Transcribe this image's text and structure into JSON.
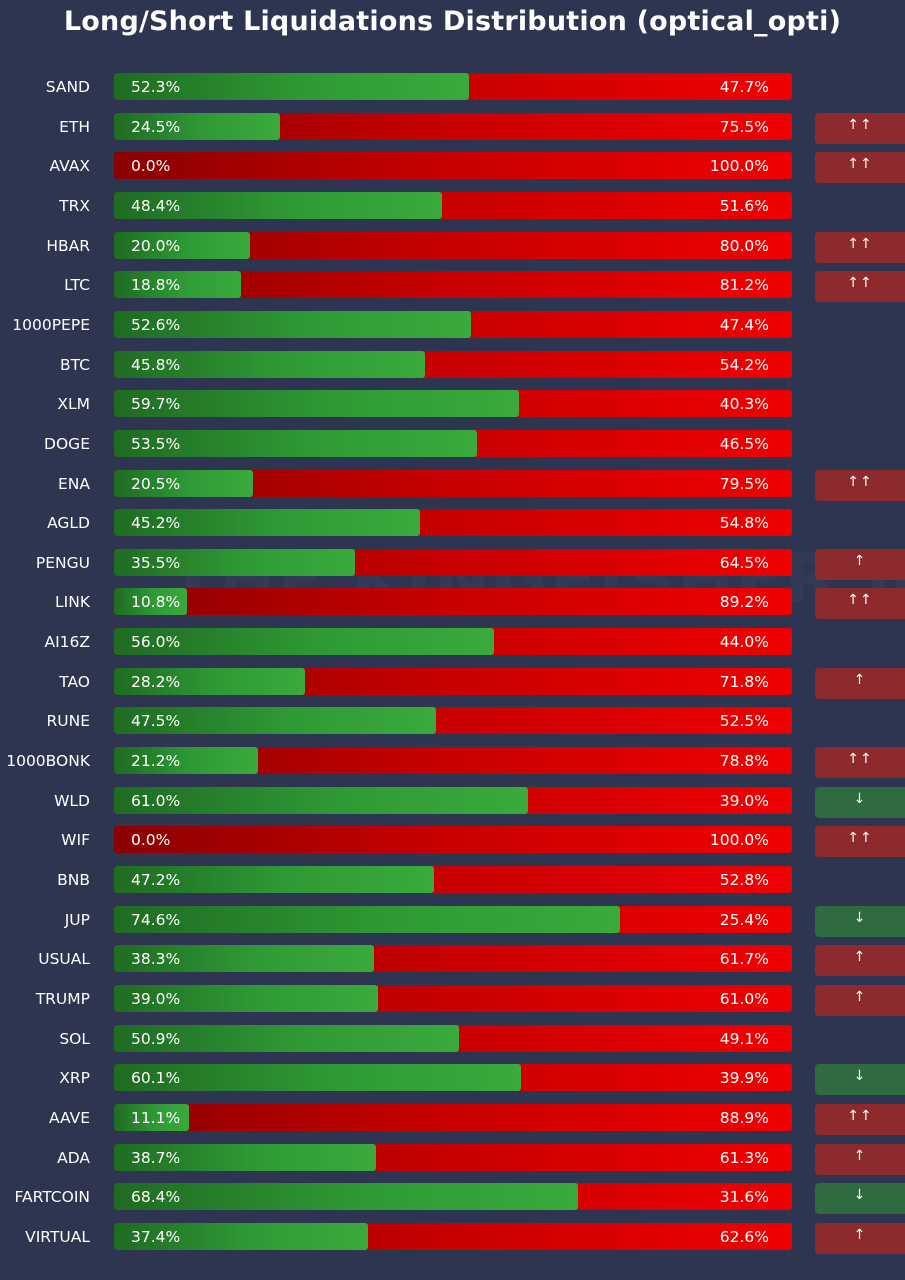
{
  "title": "Long/Short Liquidations Distribution (optical_opti)",
  "watermark": "THE KINGFISHER.io",
  "colors": {
    "background": "#2d3550",
    "long": "#3aaa3c",
    "short": "#f00000",
    "arrow_up_bg": "#8c2a2d",
    "arrow_down_bg": "#2f6a40"
  },
  "chart_data": {
    "type": "bar",
    "orientation": "horizontal",
    "stacked": true,
    "title": "Long/Short Liquidations Distribution (optical_opti)",
    "xlim": [
      0,
      100
    ],
    "categories": [
      "SAND",
      "ETH",
      "AVAX",
      "TRX",
      "HBAR",
      "LTC",
      "1000PEPE",
      "BTC",
      "XLM",
      "DOGE",
      "ENA",
      "AGLD",
      "PENGU",
      "LINK",
      "AI16Z",
      "TAO",
      "RUNE",
      "1000BONK",
      "WLD",
      "WIF",
      "BNB",
      "JUP",
      "USUAL",
      "TRUMP",
      "SOL",
      "XRP",
      "AAVE",
      "ADA",
      "FARTCOIN",
      "VIRTUAL"
    ],
    "series": [
      {
        "values": [
          52.3,
          24.5,
          0.0,
          48.4,
          20.0,
          18.8,
          52.6,
          45.8,
          59.7,
          53.5,
          20.5,
          45.2,
          35.5,
          10.8,
          56.0,
          28.2,
          47.5,
          21.2,
          61.0,
          0.0,
          47.2,
          74.6,
          38.3,
          39.0,
          50.9,
          60.1,
          11.1,
          38.7,
          68.4,
          37.4
        ]
      },
      {
        "values": [
          47.7,
          75.5,
          100.0,
          51.6,
          80.0,
          81.2,
          47.4,
          54.2,
          40.3,
          46.5,
          79.5,
          54.8,
          64.5,
          89.2,
          44.0,
          71.8,
          52.5,
          78.8,
          39.0,
          100.0,
          52.8,
          25.4,
          61.7,
          61.0,
          49.1,
          39.9,
          88.9,
          61.3,
          31.6,
          62.6
        ]
      }
    ],
    "labels_long": [
      "52.3%",
      "24.5%",
      "0.0%",
      "48.4%",
      "20.0%",
      "18.8%",
      "52.6%",
      "45.8%",
      "59.7%",
      "53.5%",
      "20.5%",
      "45.2%",
      "35.5%",
      "10.8%",
      "56.0%",
      "28.2%",
      "47.5%",
      "21.2%",
      "61.0%",
      "0.0%",
      "47.2%",
      "74.6%",
      "38.3%",
      "39.0%",
      "50.9%",
      "60.1%",
      "11.1%",
      "38.7%",
      "68.4%",
      "37.4%"
    ],
    "labels_short": [
      "47.7%",
      "75.5%",
      "100.0%",
      "51.6%",
      "80.0%",
      "81.2%",
      "47.4%",
      "54.2%",
      "40.3%",
      "46.5%",
      "79.5%",
      "54.8%",
      "64.5%",
      "89.2%",
      "44.0%",
      "71.8%",
      "52.5%",
      "78.8%",
      "39.0%",
      "100.0%",
      "52.8%",
      "25.4%",
      "61.7%",
      "61.0%",
      "49.1%",
      "39.9%",
      "88.9%",
      "61.3%",
      "31.6%",
      "62.6%"
    ],
    "signals": [
      "",
      "↑↑",
      "↑↑",
      "",
      "↑↑",
      "↑↑",
      "",
      "",
      "",
      "",
      "↑↑",
      "",
      "↑",
      "↑↑",
      "",
      "↑",
      "",
      "↑↑",
      "↓",
      "↑↑",
      "",
      "↓",
      "↑",
      "↑",
      "",
      "↓",
      "↑↑",
      "↑",
      "↓",
      "↑"
    ],
    "signal_direction": [
      "",
      "up",
      "up",
      "",
      "up",
      "up",
      "",
      "",
      "",
      "",
      "up",
      "",
      "up",
      "up",
      "",
      "up",
      "",
      "up",
      "down",
      "up",
      "",
      "down",
      "up",
      "up",
      "",
      "down",
      "up",
      "up",
      "down",
      "up"
    ]
  }
}
